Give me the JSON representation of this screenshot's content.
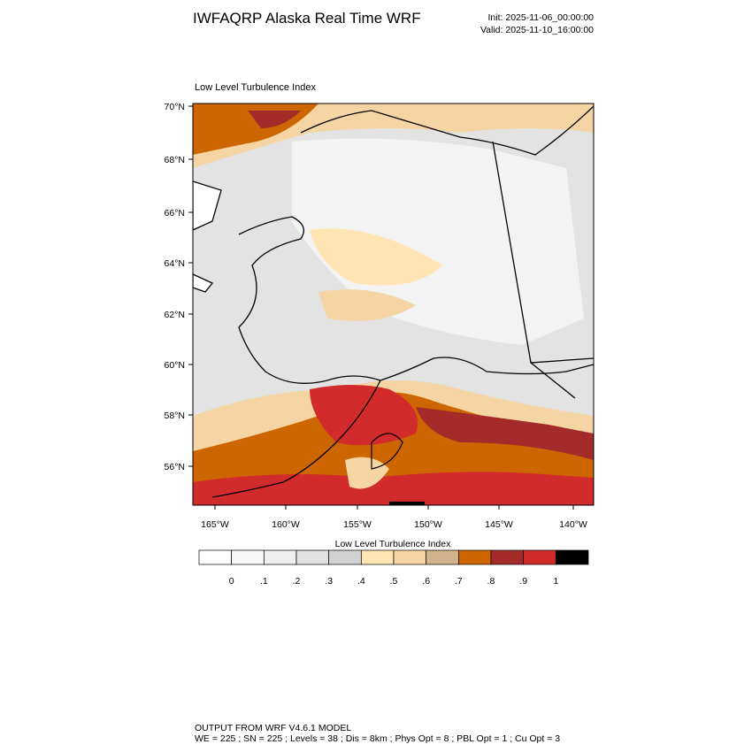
{
  "header": {
    "title": "IWFAQRP Alaska Real Time WRF",
    "init": "Init: 2025-11-06_00:00:00",
    "valid": "Valid: 2025-11-10_16:00:00"
  },
  "map": {
    "title": "Low Level Turbulence Index",
    "lat_labels": [
      "70°N",
      "68°N",
      "66°N",
      "64°N",
      "62°N",
      "60°N",
      "58°N",
      "56°N"
    ],
    "lon_labels": [
      "165°W",
      "160°W",
      "155°W",
      "150°W",
      "145°W",
      "140°W"
    ]
  },
  "colorbar": {
    "title": "Low Level Turbulence Index",
    "colors": [
      "#ffffff",
      "#f7f7f7",
      "#efefef",
      "#e1e1e1",
      "#d2d2d2",
      "#ffe5b4",
      "#f5d5a3",
      "#d2b48c",
      "#cd6600",
      "#a52a2a",
      "#d12b2b",
      "#000000"
    ],
    "labels": [
      "0",
      ".1",
      ".2",
      ".3",
      ".4",
      ".5",
      ".6",
      ".7",
      ".8",
      ".9",
      "1"
    ]
  },
  "footer": {
    "line1": "OUTPUT FROM WRF V4.6.1 MODEL",
    "line2": "WE = 225 ; SN = 225 ; Levels = 38 ; Dis = 8km ; Phys Opt = 8 ; PBL Opt = 1 ; Cu Opt = 3"
  }
}
